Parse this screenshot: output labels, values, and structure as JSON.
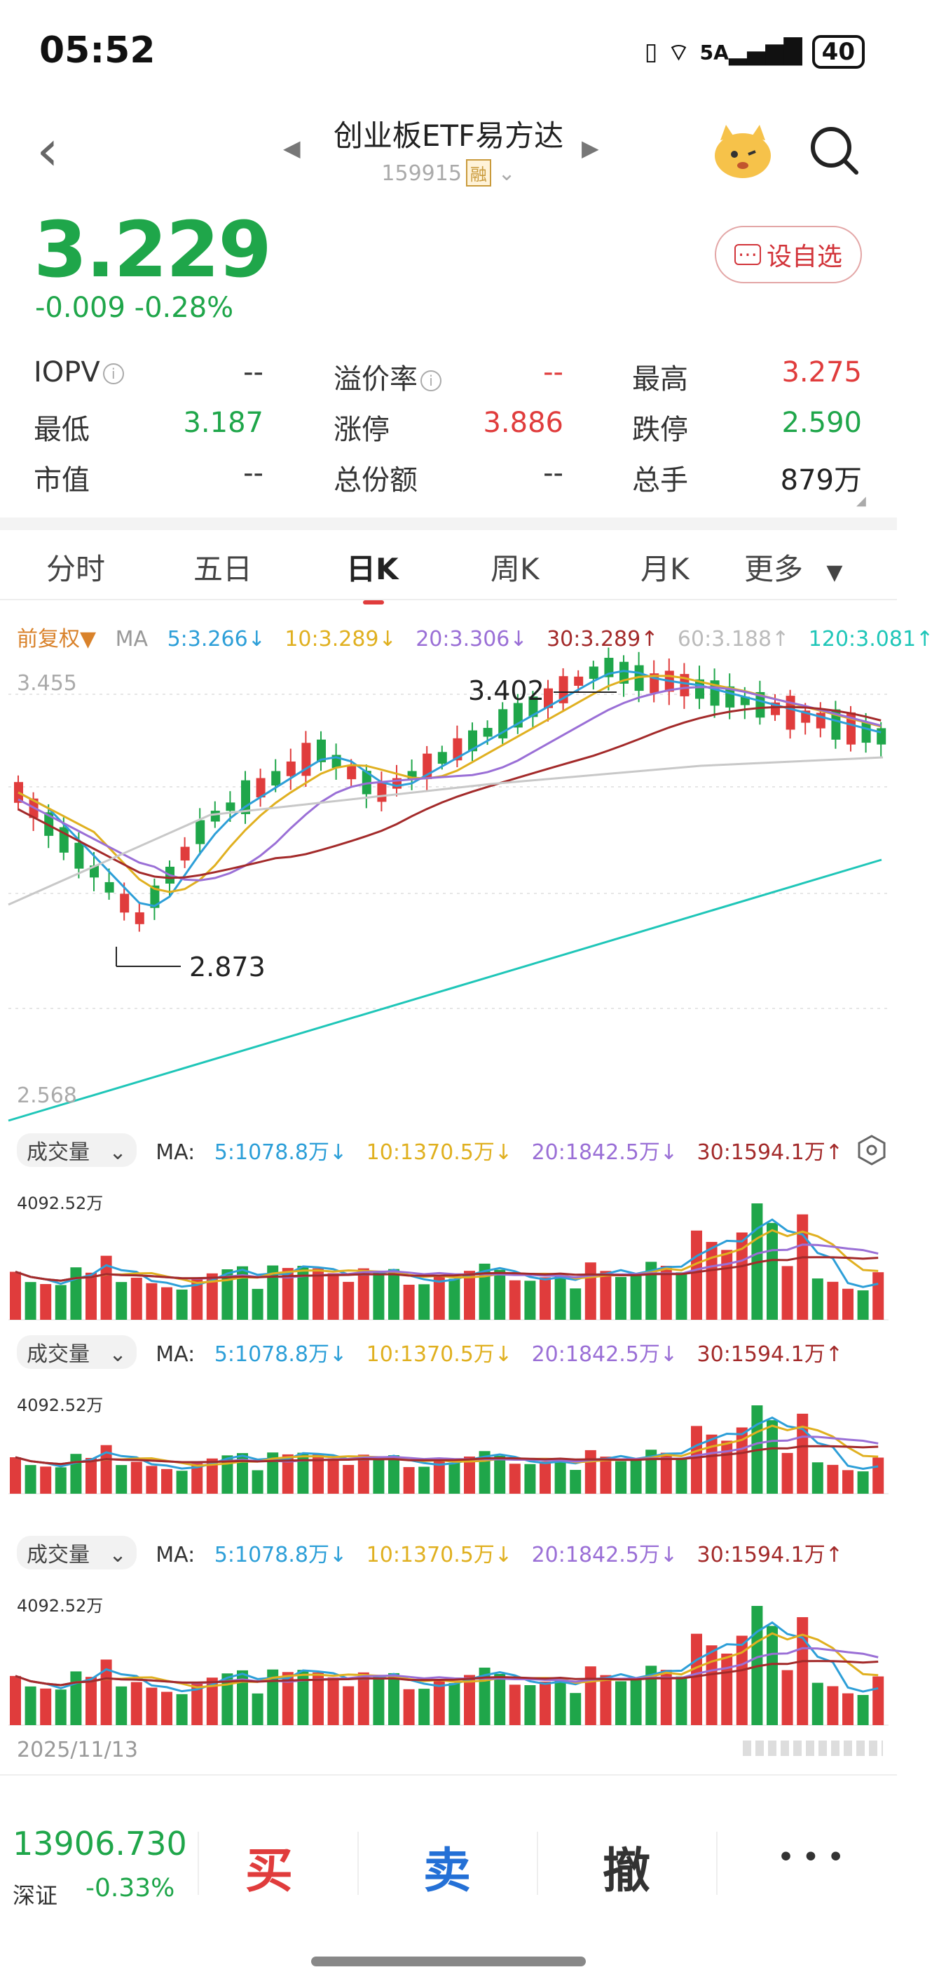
{
  "status": {
    "time": "05:52",
    "signal": "6",
    "net": "5A",
    "battery": "40"
  },
  "header": {
    "title": "创业板ETF易方达",
    "code": "159915",
    "margin_tag": "融"
  },
  "quote": {
    "price": "3.229",
    "change": "-0.009",
    "change_pct": "-0.28%",
    "fav_label": "设自选"
  },
  "stats": [
    {
      "label": "IOPV",
      "value": "--",
      "info": true
    },
    {
      "label": "溢价率",
      "value": "--",
      "info": true
    },
    {
      "label": "最高",
      "value": "3.275"
    },
    {
      "label": "最低",
      "value": "3.187"
    },
    {
      "label": "涨停",
      "value": "3.886"
    },
    {
      "label": "跌停",
      "value": "2.590"
    },
    {
      "label": "市值",
      "value": "--"
    },
    {
      "label": "总份额",
      "value": "--"
    },
    {
      "label": "总手",
      "value": "879万"
    }
  ],
  "tabs": [
    "分时",
    "五日",
    "日K",
    "周K",
    "月K",
    "更多"
  ],
  "ma_bar": {
    "adjust": "前复权▼",
    "label": "MA",
    "items": [
      "5:3.266↓",
      "10:3.289↓",
      "20:3.306↓",
      "30:3.289↑",
      "60:3.188↑",
      "120:3.081↑"
    ]
  },
  "kline": {
    "y_top_label": "3.455",
    "y_bottom_label": "2.568",
    "high_annot": "3.402",
    "low_annot": "2.873"
  },
  "volume_panels": [
    {
      "chip": "成交量",
      "label": "MA:",
      "items": [
        "5:1078.8万↓",
        "10:1370.5万↓",
        "20:1842.5万↓",
        "30:1594.1万↑"
      ],
      "max": "4092.52万"
    },
    {
      "chip": "成交量",
      "label": "MA:",
      "items": [
        "5:1078.8万↓",
        "10:1370.5万↓",
        "20:1842.5万↓",
        "30:1594.1万↑"
      ],
      "max": "4092.52万"
    },
    {
      "chip": "成交量",
      "label": "MA:",
      "items": [
        "5:1078.8万↓",
        "10:1370.5万↓",
        "20:1842.5万↓",
        "30:1594.1万↑"
      ],
      "max": "4092.52万"
    }
  ],
  "date": "2025/11/13",
  "bottom": {
    "index_value": "13906.730",
    "index_name": "深证",
    "index_pct": "-0.33%",
    "buy": "买",
    "sell": "卖",
    "cancel": "撤",
    "more": "• • •"
  },
  "colors": {
    "up": "#e03c3c",
    "down": "#1fa64a",
    "ma5": "#2d9fd8",
    "ma10": "#e0b020",
    "ma20": "#9a6fd6",
    "ma30": "#a32a2a",
    "ma60": "#c8c8c8",
    "ma120": "#1fc6b8"
  }
}
